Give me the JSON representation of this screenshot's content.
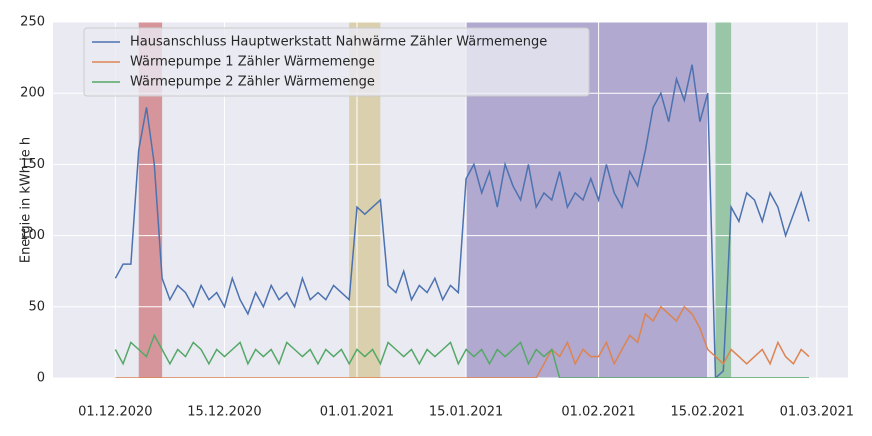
{
  "chart_data": {
    "type": "line",
    "ylabel": "Energie in kWh je h",
    "x": [
      "2020-12-01",
      "2020-12-02",
      "2020-12-03",
      "2020-12-04",
      "2020-12-05",
      "2020-12-06",
      "2020-12-07",
      "2020-12-08",
      "2020-12-09",
      "2020-12-10",
      "2020-12-11",
      "2020-12-12",
      "2020-12-13",
      "2020-12-14",
      "2020-12-15",
      "2020-12-16",
      "2020-12-17",
      "2020-12-18",
      "2020-12-19",
      "2020-12-20",
      "2020-12-21",
      "2020-12-22",
      "2020-12-23",
      "2020-12-24",
      "2020-12-25",
      "2020-12-26",
      "2020-12-27",
      "2020-12-28",
      "2020-12-29",
      "2020-12-30",
      "2020-12-31",
      "2021-01-01",
      "2021-01-02",
      "2021-01-03",
      "2021-01-04",
      "2021-01-05",
      "2021-01-06",
      "2021-01-07",
      "2021-01-08",
      "2021-01-09",
      "2021-01-10",
      "2021-01-11",
      "2021-01-12",
      "2021-01-13",
      "2021-01-14",
      "2021-01-15",
      "2021-01-16",
      "2021-01-17",
      "2021-01-18",
      "2021-01-19",
      "2021-01-20",
      "2021-01-21",
      "2021-01-22",
      "2021-01-23",
      "2021-01-24",
      "2021-01-25",
      "2021-01-26",
      "2021-01-27",
      "2021-01-28",
      "2021-01-29",
      "2021-01-30",
      "2021-01-31",
      "2021-02-01",
      "2021-02-02",
      "2021-02-03",
      "2021-02-04",
      "2021-02-05",
      "2021-02-06",
      "2021-02-07",
      "2021-02-08",
      "2021-02-09",
      "2021-02-10",
      "2021-02-11",
      "2021-02-12",
      "2021-02-13",
      "2021-02-14",
      "2021-02-15",
      "2021-02-16",
      "2021-02-17",
      "2021-02-18",
      "2021-02-19",
      "2021-02-20",
      "2021-02-21",
      "2021-02-22",
      "2021-02-23",
      "2021-02-24",
      "2021-02-25",
      "2021-02-26",
      "2021-02-27",
      "2021-02-28"
    ],
    "series": [
      {
        "name": "Hausanschluss Hauptwerkstatt Nahwärme Zähler Wärmemenge",
        "color": "#4c72b0",
        "values": [
          70,
          80,
          80,
          160,
          190,
          150,
          70,
          55,
          65,
          60,
          50,
          65,
          55,
          60,
          50,
          70,
          55,
          45,
          60,
          50,
          65,
          55,
          60,
          50,
          70,
          55,
          60,
          55,
          65,
          60,
          55,
          120,
          115,
          120,
          125,
          65,
          60,
          75,
          55,
          65,
          60,
          70,
          55,
          65,
          60,
          140,
          150,
          130,
          145,
          120,
          150,
          135,
          125,
          150,
          120,
          130,
          125,
          145,
          120,
          130,
          125,
          140,
          125,
          150,
          130,
          120,
          145,
          135,
          160,
          190,
          200,
          180,
          210,
          195,
          220,
          180,
          200,
          0,
          5,
          120,
          110,
          130,
          125,
          110,
          130,
          120,
          100,
          115,
          130,
          110
        ]
      },
      {
        "name": "Wärmepumpe 1 Zähler Wärmemenge",
        "color": "#dd8452",
        "values": [
          0,
          0,
          0,
          0,
          0,
          0,
          0,
          0,
          0,
          0,
          0,
          0,
          0,
          0,
          0,
          0,
          0,
          0,
          0,
          0,
          0,
          0,
          0,
          0,
          0,
          0,
          0,
          0,
          0,
          0,
          0,
          0,
          0,
          0,
          0,
          0,
          0,
          0,
          0,
          0,
          0,
          0,
          0,
          0,
          0,
          0,
          0,
          0,
          0,
          0,
          0,
          0,
          0,
          0,
          0,
          10,
          20,
          15,
          25,
          10,
          20,
          15,
          15,
          25,
          10,
          20,
          30,
          25,
          45,
          40,
          50,
          45,
          40,
          50,
          45,
          35,
          20,
          15,
          10,
          20,
          15,
          10,
          15,
          20,
          10,
          25,
          15,
          10,
          20,
          15
        ]
      },
      {
        "name": "Wärmepumpe 2 Zähler Wärmemenge",
        "color": "#55a868",
        "values": [
          20,
          10,
          25,
          20,
          15,
          30,
          20,
          10,
          20,
          15,
          25,
          20,
          10,
          20,
          15,
          20,
          25,
          10,
          20,
          15,
          20,
          10,
          25,
          20,
          15,
          20,
          10,
          20,
          15,
          20,
          10,
          20,
          15,
          20,
          10,
          25,
          20,
          15,
          20,
          10,
          20,
          15,
          20,
          25,
          10,
          20,
          15,
          20,
          10,
          20,
          15,
          20,
          25,
          10,
          20,
          15,
          20,
          0,
          0,
          0,
          0,
          0,
          0,
          0,
          0,
          0,
          0,
          0,
          0,
          0,
          0,
          0,
          0,
          0,
          0,
          0,
          0,
          0,
          0,
          0,
          0,
          0,
          0,
          0,
          0,
          0,
          0,
          0,
          0,
          0
        ]
      }
    ],
    "highlights": [
      {
        "start": "2020-12-04",
        "end": "2020-12-07",
        "color": "#c44e52"
      },
      {
        "start": "2020-12-31",
        "end": "2021-01-04",
        "color": "#ccb974"
      },
      {
        "start": "2021-01-15",
        "end": "2021-02-15",
        "color": "#8172b3"
      },
      {
        "start": "2021-02-16",
        "end": "2021-02-18",
        "color": "#55a868"
      }
    ],
    "xlim": [
      "2020-11-23",
      "2021-03-05"
    ],
    "xticks": [
      {
        "value": "2020-12-01",
        "label": "01.12.2020"
      },
      {
        "value": "2020-12-15",
        "label": "15.12.2020"
      },
      {
        "value": "2021-01-01",
        "label": "01.01.2021"
      },
      {
        "value": "2021-01-15",
        "label": "15.01.2021"
      },
      {
        "value": "2021-02-01",
        "label": "01.02.2021"
      },
      {
        "value": "2021-02-15",
        "label": "15.02.2021"
      },
      {
        "value": "2021-03-01",
        "label": "01.03.2021"
      }
    ],
    "ylim": [
      0,
      250
    ],
    "yticks": [
      0,
      50,
      100,
      150,
      200,
      250
    ],
    "grid": true,
    "legend": "upper left"
  }
}
